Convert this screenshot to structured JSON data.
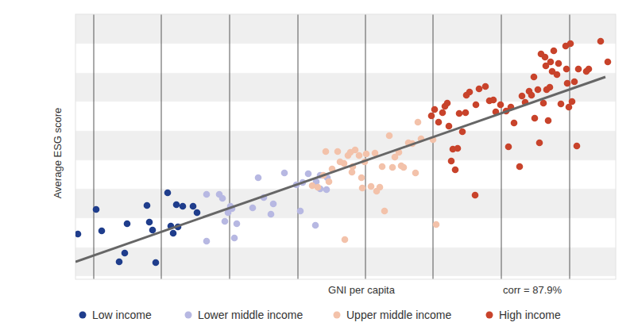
{
  "chart_data": {
    "type": "scatter",
    "x_label": "GNI per capita",
    "y_label": "Average ESG score",
    "annotations": [
      {
        "text": "corr = 87.9%"
      }
    ],
    "xlim": [
      0,
      68
    ],
    "xticks": [
      2.3,
      10.8,
      19.4,
      28,
      36.5,
      45,
      53.6,
      62.2
    ],
    "ylim": [
      0,
      33.4
    ],
    "yticks": [
      0.4,
      4,
      7.7,
      11.4,
      15,
      18.7,
      22.4,
      26,
      29.7,
      33.4
    ],
    "grid": true,
    "tick_labels": false,
    "legend": "bottom",
    "series": [
      {
        "name": "Low income",
        "color": "#1f3d8c",
        "marker": "circle",
        "x": [
          0.3,
          2.6,
          3.3,
          5.5,
          6.2,
          6.5,
          9,
          9.3,
          9.7,
          10.1,
          11.6,
          12,
          12.3,
          12.7,
          12.9,
          13.5,
          14.8,
          15.3
        ],
        "values": [
          5.7,
          8.8,
          6.1,
          2.2,
          3.3,
          7,
          9.3,
          7.2,
          6.2,
          2.1,
          10.9,
          6.7,
          5.8,
          9.4,
          6.6,
          9.2,
          9.2,
          8.4
        ]
      },
      {
        "name": "Lower middle income",
        "color": "#b7b8e2",
        "marker": "circle",
        "x": [
          16.5,
          16.5,
          18.1,
          18.5,
          18.8,
          19.2,
          19.5,
          19.7,
          20,
          20.3,
          22.3,
          23,
          23.7,
          24.6,
          24.9,
          26.3,
          27.8,
          28.3,
          28.6,
          29.3,
          30.2,
          30.3,
          30.8,
          30.8,
          31.6,
          31.7
        ],
        "values": [
          10.7,
          4.8,
          10.7,
          10.2,
          7.3,
          8.4,
          9.2,
          8.9,
          5.2,
          7,
          9,
          12.8,
          10.3,
          8.2,
          9.5,
          13.4,
          11.9,
          8.6,
          12.2,
          13.3,
          6.8,
          12.3,
          13.1,
          11.4,
          11.3,
          12.8
        ]
      },
      {
        "name": "Upper middle income",
        "color": "#f3c2aa",
        "marker": "circle",
        "x": [
          29.8,
          30.5,
          31.2,
          31.5,
          31.9,
          32.3,
          33,
          33.3,
          33.8,
          33.9,
          34.3,
          34.6,
          34.8,
          34.9,
          35.2,
          35.7,
          36,
          36.1,
          36.4,
          36.6,
          37.2,
          37.7,
          37.9,
          38.3,
          38.6,
          38.9,
          39.5,
          39.9,
          40.2,
          40.7,
          41,
          41.3,
          41.9,
          42.4,
          42.8,
          43.1,
          43.5,
          45,
          45.4
        ],
        "values": [
          11.8,
          11.6,
          13.1,
          16.1,
          12.3,
          13.9,
          16.1,
          14.8,
          14.6,
          5,
          15.6,
          16,
          13.5,
          14.2,
          16.3,
          15.6,
          12.8,
          11.5,
          14.8,
          15.8,
          11.7,
          15.9,
          11.1,
          11.6,
          14.2,
          8.6,
          18.1,
          14.1,
          15.4,
          16,
          14.3,
          14.1,
          17.2,
          17.1,
          13.4,
          19.8,
          17.7,
          17.6,
          6.9
        ]
      },
      {
        "name": "High income",
        "color": "#c8432b",
        "marker": "circle",
        "x": [
          44.8,
          45.2,
          45.7,
          46.2,
          46.5,
          46.8,
          47,
          47.3,
          47.5,
          47.8,
          48.1,
          48.3,
          48.7,
          49.1,
          49.2,
          49.6,
          50.3,
          50.4,
          50.8,
          51.6,
          52.1,
          52.6,
          52.9,
          53.5,
          54.2,
          54.5,
          54.8,
          55.2,
          55.9,
          56.2,
          56.6,
          57.1,
          57.4,
          57.7,
          57.8,
          58.2,
          58.4,
          58.6,
          58.9,
          59.1,
          59.2,
          59.3,
          59.5,
          59.7,
          59.8,
          60,
          60.2,
          60.6,
          60.8,
          61.1,
          61.7,
          61.8,
          61.9,
          62.1,
          62.3,
          62.5,
          62.8,
          63.1,
          63.3,
          64.3,
          64.6,
          66.1,
          67
        ],
        "values": [
          20.6,
          21.4,
          19.8,
          21,
          21.8,
          22.2,
          19.3,
          14.9,
          16.4,
          13.8,
          16.5,
          20.9,
          18.6,
          21,
          23.2,
          23.6,
          10.6,
          22,
          24,
          24.3,
          22.5,
          22.6,
          21.1,
          22,
          21.2,
          16.7,
          21.7,
          19.7,
          14.2,
          23.1,
          22.3,
          23.7,
          23.2,
          25.5,
          20.3,
          23.9,
          17.2,
          28.4,
          22.2,
          28,
          26.9,
          23.9,
          20,
          24.2,
          27.4,
          26.2,
          28.8,
          25.8,
          27.2,
          22.1,
          29.4,
          26.5,
          24.7,
          21.7,
          29.7,
          22.4,
          24.9,
          16.8,
          26.5,
          26.2,
          26.5,
          30,
          27.4
        ]
      },
      {
        "type": "line",
        "color": "#666666",
        "line_style": "solid",
        "x": [
          0,
          66.7
        ],
        "values": [
          2.2,
          25.5
        ]
      }
    ]
  }
}
